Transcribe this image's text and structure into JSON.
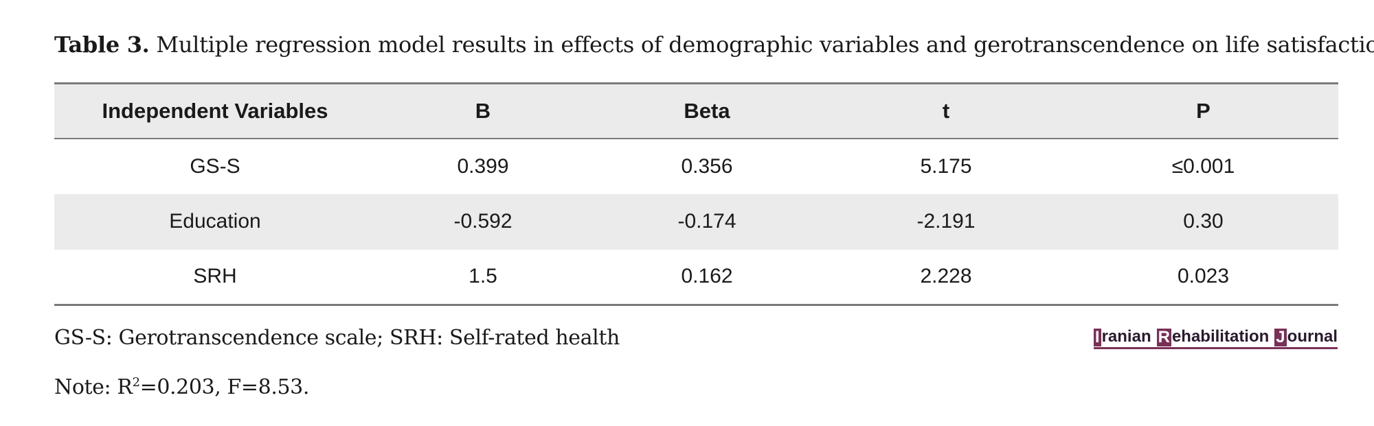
{
  "caption": {
    "label": "Table 3.",
    "text": " Multiple regression model results in effects of demographic variables and gerotranscendence on life satisfaction"
  },
  "table": {
    "headers": [
      "Independent Variables",
      "B",
      "Beta",
      "t",
      "P"
    ],
    "rows": [
      [
        "GS-S",
        "0.399",
        "0.356",
        "5.175",
        "≤0.001"
      ],
      [
        "Education",
        "-0.592",
        "-0.174",
        "-2.191",
        "0.30"
      ],
      [
        "SRH",
        "1.5",
        "0.162",
        "2.228",
        "0.023"
      ]
    ]
  },
  "footnotes": {
    "abbreviations": "GS-S: Gerotranscendence scale; SRH: Self-rated health",
    "note_prefix": "Note: R",
    "note_sup": "2",
    "note_suffix": "=0.203, F=8.53."
  },
  "logo": {
    "word1_initial": "I",
    "word1_rest": "ranian",
    "word2_initial": "R",
    "word2_rest": "ehabilitation",
    "word3_initial": "J",
    "word3_rest": "ournal",
    "accent_color": "#7a2f55"
  }
}
